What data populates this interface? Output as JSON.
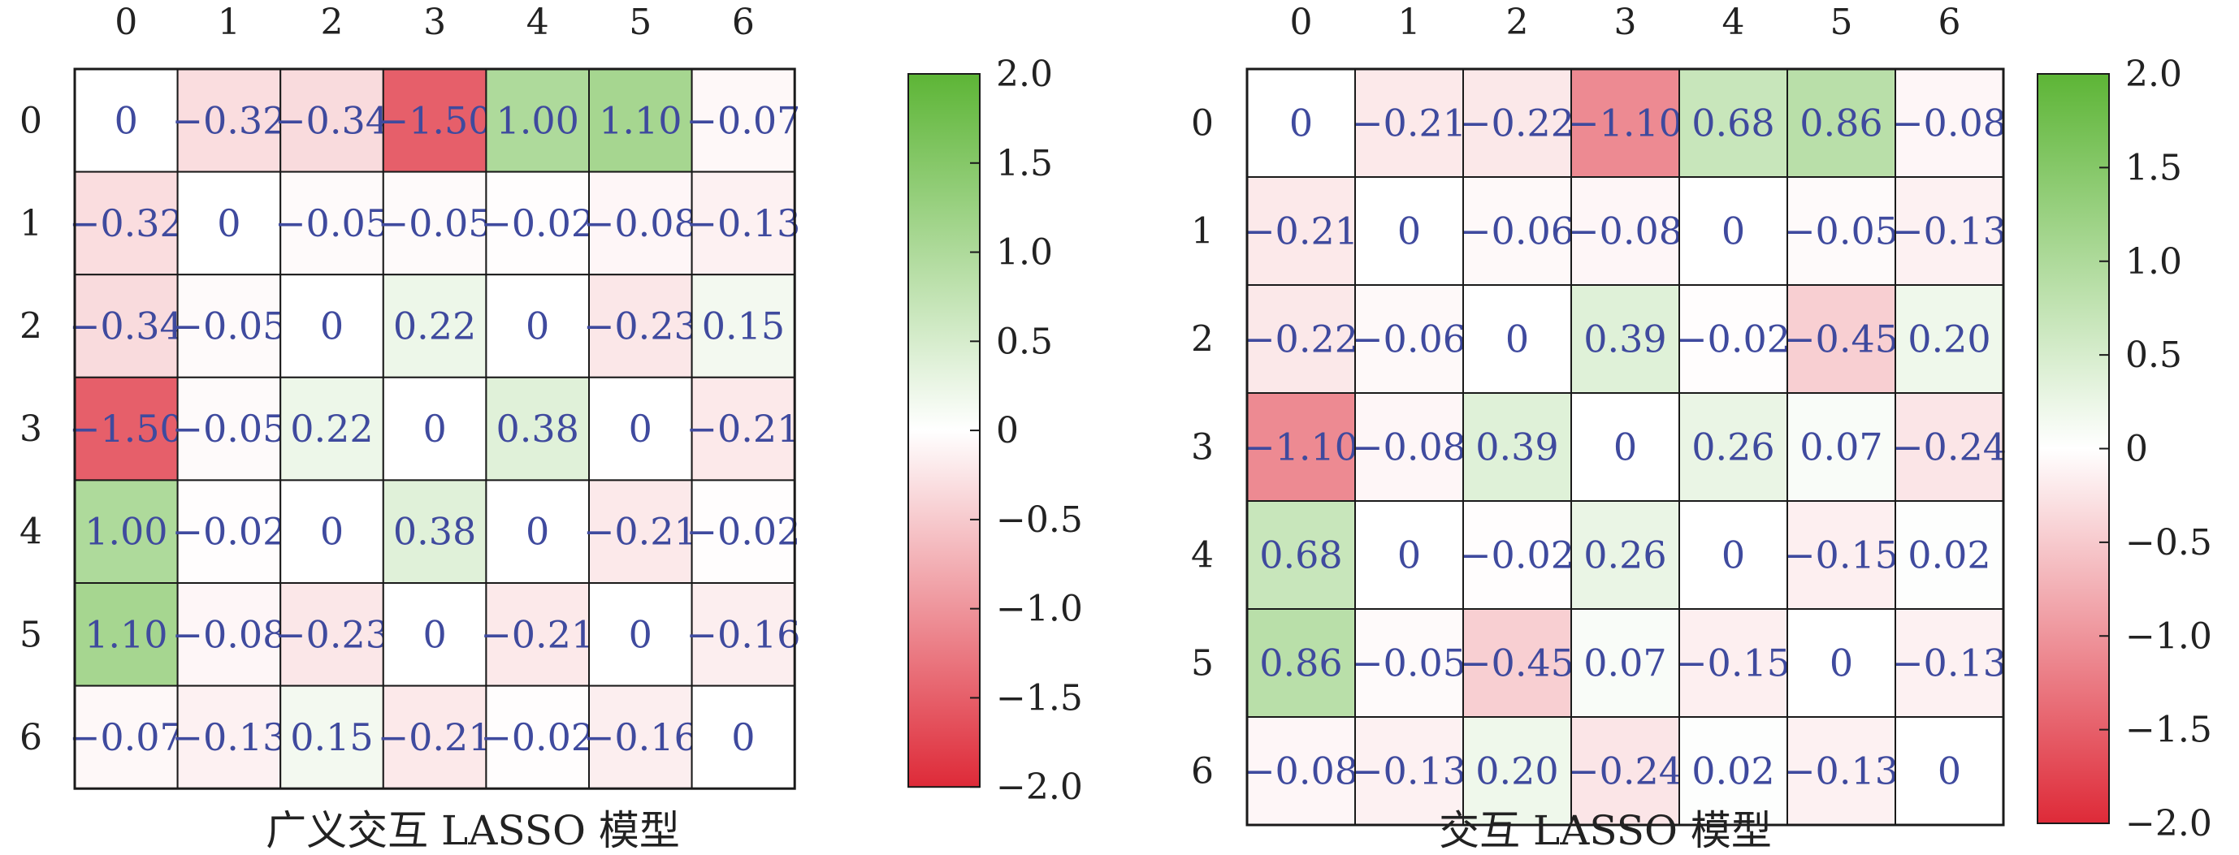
{
  "colorbar": {
    "min": -2.0,
    "max": 2.0,
    "ticks": [
      "2.0",
      "1.5",
      "1.0",
      "0.5",
      "0",
      "−0.5",
      "−1.0",
      "−1.5",
      "−2.0"
    ],
    "tick_values": [
      2.0,
      1.5,
      1.0,
      0.5,
      0,
      -0.5,
      -1.0,
      -1.5,
      -2.0
    ],
    "colors": {
      "negative": "#de2a38",
      "zero": "#ffffff",
      "positive": "#5db536"
    }
  },
  "cell_text_color": "#3f4a9e",
  "axis_text_color": "#222222",
  "chart_data": [
    {
      "type": "heatmap",
      "title": "广义交互 LASSO 模型",
      "x_labels": [
        "0",
        "1",
        "2",
        "3",
        "4",
        "5",
        "6"
      ],
      "y_labels": [
        "0",
        "1",
        "2",
        "3",
        "4",
        "5",
        "6"
      ],
      "values": [
        [
          0,
          -0.32,
          -0.34,
          -1.5,
          1.0,
          1.1,
          -0.07
        ],
        [
          -0.32,
          0,
          -0.05,
          -0.05,
          -0.02,
          -0.08,
          -0.13
        ],
        [
          -0.34,
          -0.05,
          0,
          0.22,
          0,
          -0.23,
          0.15
        ],
        [
          -1.5,
          -0.05,
          0.22,
          0,
          0.38,
          0,
          -0.21
        ],
        [
          1.0,
          -0.02,
          0,
          0.38,
          0,
          -0.21,
          -0.02
        ],
        [
          1.1,
          -0.08,
          -0.23,
          0,
          -0.21,
          0,
          -0.16
        ],
        [
          -0.07,
          -0.13,
          0.15,
          -0.21,
          -0.02,
          -0.16,
          0
        ]
      ],
      "labels": [
        [
          "0",
          "−0.32",
          "−0.34",
          "−1.50",
          "1.00",
          "1.10",
          "−0.07"
        ],
        [
          "−0.32",
          "0",
          "−0.05",
          "−0.05",
          "−0.02",
          "−0.08",
          "−0.13"
        ],
        [
          "−0.34",
          "−0.05",
          "0",
          "0.22",
          "0",
          "−0.23",
          "0.15"
        ],
        [
          "−1.50",
          "−0.05",
          "0.22",
          "0",
          "0.38",
          "0",
          "−0.21"
        ],
        [
          "1.00",
          "−0.02",
          "0",
          "0.38",
          "0",
          "−0.21",
          "−0.02"
        ],
        [
          "1.10",
          "−0.08",
          "−0.23",
          "0",
          "−0.21",
          "0",
          "−0.16"
        ],
        [
          "−0.07",
          "−0.13",
          "0.15",
          "−0.21",
          "−0.02",
          "−0.16",
          "0"
        ]
      ]
    },
    {
      "type": "heatmap",
      "title": "交互 LASSO 模型",
      "x_labels": [
        "0",
        "1",
        "2",
        "3",
        "4",
        "5",
        "6"
      ],
      "y_labels": [
        "0",
        "1",
        "2",
        "3",
        "4",
        "5",
        "6"
      ],
      "values": [
        [
          0,
          -0.21,
          -0.22,
          -1.1,
          0.68,
          0.86,
          -0.08
        ],
        [
          -0.21,
          0,
          -0.06,
          -0.08,
          0,
          -0.05,
          -0.13
        ],
        [
          -0.22,
          -0.06,
          0,
          0.39,
          -0.02,
          -0.45,
          0.2
        ],
        [
          -1.1,
          -0.08,
          0.39,
          0,
          0.26,
          0.07,
          -0.24
        ],
        [
          0.68,
          0,
          -0.02,
          0.26,
          0,
          -0.15,
          0.02
        ],
        [
          0.86,
          -0.05,
          -0.45,
          0.07,
          -0.15,
          0,
          -0.13
        ],
        [
          -0.08,
          -0.13,
          0.2,
          -0.24,
          0.02,
          -0.13,
          0
        ]
      ],
      "labels": [
        [
          "0",
          "−0.21",
          "−0.22",
          "−1.10",
          "0.68",
          "0.86",
          "−0.08"
        ],
        [
          "−0.21",
          "0",
          "−0.06",
          "−0.08",
          "0",
          "−0.05",
          "−0.13"
        ],
        [
          "−0.22",
          "−0.06",
          "0",
          "0.39",
          "−0.02",
          "−0.45",
          "0.20"
        ],
        [
          "−1.10",
          "−0.08",
          "0.39",
          "0",
          "0.26",
          "0.07",
          "−0.24"
        ],
        [
          "0.68",
          "0",
          "−0.02",
          "0.26",
          "0",
          "−0.15",
          "0.02"
        ],
        [
          "0.86",
          "−0.05",
          "−0.45",
          "0.07",
          "−0.15",
          "0",
          "−0.13"
        ],
        [
          "−0.08",
          "−0.13",
          "0.20",
          "−0.24",
          "0.02",
          "−0.13",
          "0"
        ]
      ]
    }
  ]
}
